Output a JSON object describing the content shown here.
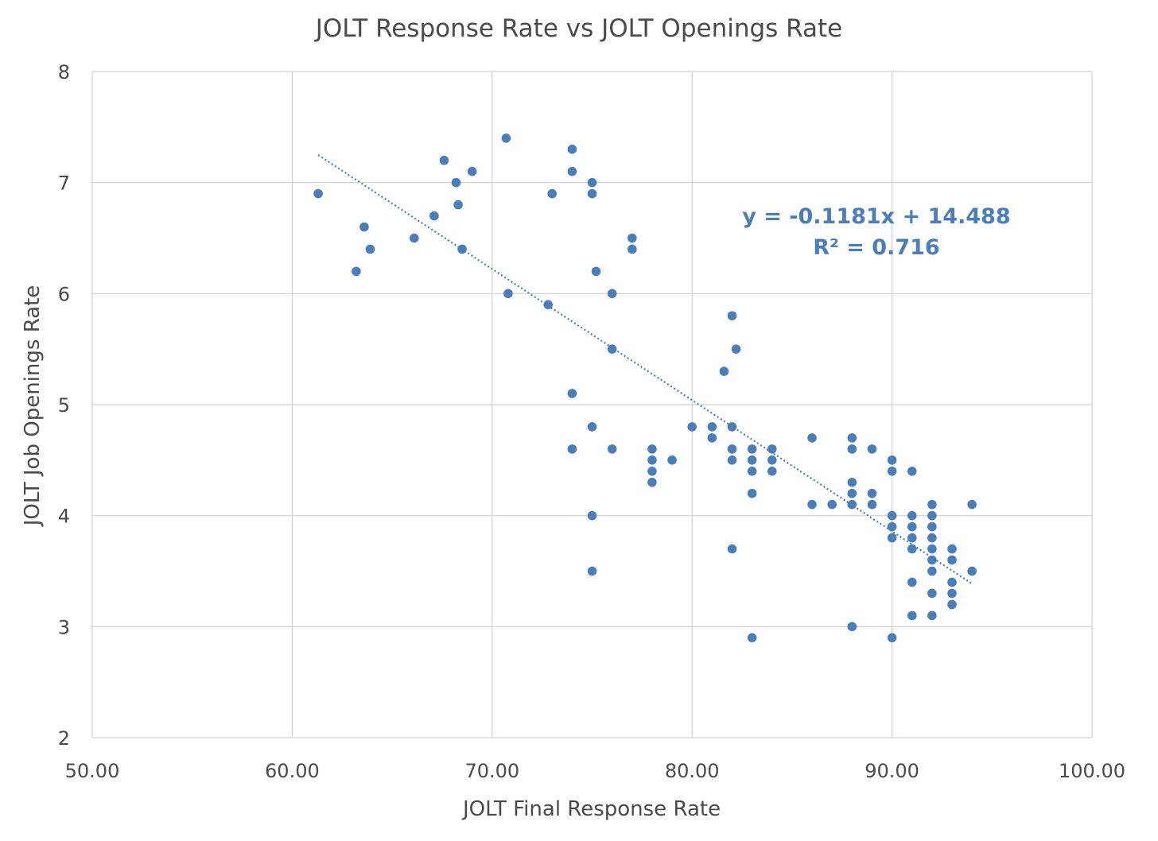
{
  "colors": {
    "marker": "#4a7ebb",
    "trendline": "#4a7ebb",
    "grid": "#d0d0d0",
    "text": "#4a4a4a",
    "equation": "#4a7ebb"
  },
  "chart_data": {
    "type": "scatter",
    "title": "JOLT Response Rate vs JOLT Openings Rate",
    "xlabel": "JOLT Final Response Rate",
    "ylabel": "JOLT Job Openings Rate",
    "xlim": [
      50,
      100
    ],
    "ylim": [
      2,
      8
    ],
    "x_ticks": [
      50,
      60,
      70,
      80,
      90,
      100
    ],
    "x_tick_labels": [
      "50.00",
      "60.00",
      "70.00",
      "80.00",
      "90.00",
      "100.00"
    ],
    "y_ticks": [
      2,
      3,
      4,
      5,
      6,
      7,
      8
    ],
    "y_tick_labels": [
      "2",
      "3",
      "4",
      "5",
      "6",
      "7",
      "8"
    ],
    "grid": true,
    "legend": false,
    "marker_shape": "circle",
    "trendline": {
      "type": "linear",
      "style": "dotted",
      "slope": -0.1181,
      "intercept": 14.488,
      "x_range": [
        61.3,
        94.0
      ],
      "equation_text": "y = -0.1181x + 14.488",
      "r_squared_text": "R² = 0.716"
    },
    "points": [
      [
        61.3,
        6.9
      ],
      [
        63.2,
        6.2
      ],
      [
        63.6,
        6.6
      ],
      [
        63.9,
        6.4
      ],
      [
        66.1,
        6.5
      ],
      [
        67.1,
        6.7
      ],
      [
        67.6,
        7.2
      ],
      [
        68.2,
        7.0
      ],
      [
        68.3,
        6.8
      ],
      [
        68.5,
        6.4
      ],
      [
        69.0,
        7.1
      ],
      [
        70.7,
        7.4
      ],
      [
        70.8,
        6.0
      ],
      [
        72.8,
        5.9
      ],
      [
        73.0,
        6.9
      ],
      [
        74.0,
        7.3
      ],
      [
        74.0,
        7.1
      ],
      [
        74.0,
        5.1
      ],
      [
        74.0,
        4.6
      ],
      [
        75.0,
        7.0
      ],
      [
        75.0,
        6.9
      ],
      [
        75.2,
        6.2
      ],
      [
        75.0,
        4.8
      ],
      [
        75.0,
        4.0
      ],
      [
        75.0,
        3.5
      ],
      [
        76.0,
        6.0
      ],
      [
        76.0,
        5.5
      ],
      [
        76.0,
        4.6
      ],
      [
        77.0,
        6.5
      ],
      [
        77.0,
        6.4
      ],
      [
        78.0,
        4.6
      ],
      [
        78.0,
        4.5
      ],
      [
        78.0,
        4.4
      ],
      [
        78.0,
        4.3
      ],
      [
        79.0,
        4.5
      ],
      [
        80.0,
        4.8
      ],
      [
        81.0,
        4.8
      ],
      [
        81.0,
        4.7
      ],
      [
        81.6,
        5.3
      ],
      [
        82.0,
        5.8
      ],
      [
        82.2,
        5.5
      ],
      [
        82.0,
        4.8
      ],
      [
        82.0,
        4.6
      ],
      [
        82.0,
        4.5
      ],
      [
        82.0,
        3.7
      ],
      [
        83.0,
        4.6
      ],
      [
        83.0,
        4.5
      ],
      [
        83.0,
        4.4
      ],
      [
        83.0,
        4.2
      ],
      [
        83.0,
        2.9
      ],
      [
        84.0,
        4.6
      ],
      [
        84.0,
        4.5
      ],
      [
        84.0,
        4.4
      ],
      [
        86.0,
        4.7
      ],
      [
        86.0,
        4.1
      ],
      [
        87.0,
        4.1
      ],
      [
        88.0,
        4.7
      ],
      [
        88.0,
        4.6
      ],
      [
        88.0,
        4.3
      ],
      [
        88.0,
        4.2
      ],
      [
        88.0,
        4.1
      ],
      [
        88.0,
        3.0
      ],
      [
        89.0,
        4.6
      ],
      [
        89.0,
        4.2
      ],
      [
        89.0,
        4.1
      ],
      [
        90.0,
        4.5
      ],
      [
        90.0,
        4.4
      ],
      [
        90.0,
        4.0
      ],
      [
        90.0,
        3.9
      ],
      [
        90.0,
        3.8
      ],
      [
        90.0,
        2.9
      ],
      [
        91.0,
        4.4
      ],
      [
        91.0,
        4.0
      ],
      [
        91.0,
        3.9
      ],
      [
        91.0,
        3.8
      ],
      [
        91.0,
        3.7
      ],
      [
        91.0,
        3.4
      ],
      [
        91.0,
        3.1
      ],
      [
        92.0,
        4.1
      ],
      [
        92.0,
        4.0
      ],
      [
        92.0,
        3.9
      ],
      [
        92.0,
        3.8
      ],
      [
        92.0,
        3.7
      ],
      [
        92.0,
        3.6
      ],
      [
        92.0,
        3.5
      ],
      [
        92.0,
        3.3
      ],
      [
        92.0,
        3.1
      ],
      [
        93.0,
        3.7
      ],
      [
        93.0,
        3.6
      ],
      [
        93.0,
        3.4
      ],
      [
        93.0,
        3.3
      ],
      [
        93.0,
        3.2
      ],
      [
        94.0,
        4.1
      ],
      [
        94.0,
        3.5
      ]
    ]
  }
}
